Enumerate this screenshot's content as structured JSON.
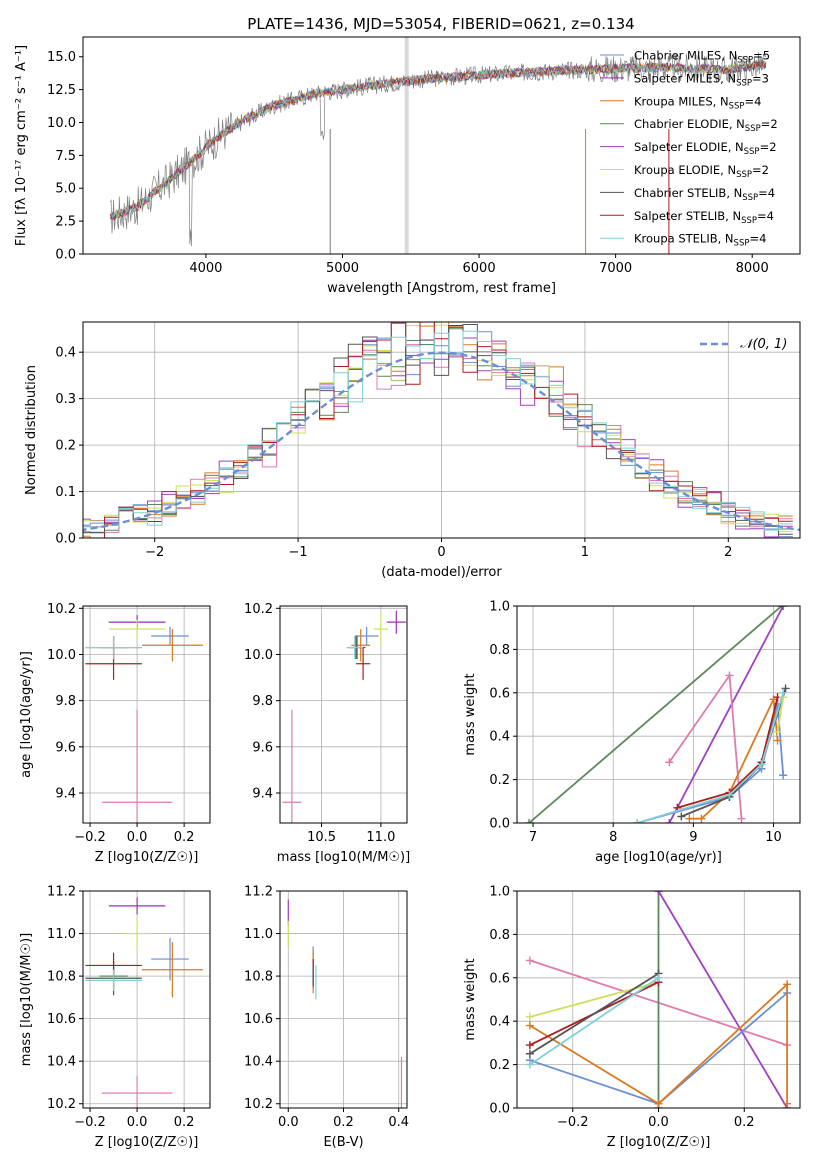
{
  "figure_title": "PLATE=1436, MJD=53054, FIBERID=0621, z=0.134",
  "colors": {
    "Chabrier MILES": "#6a8fd6",
    "Salpeter MILES": "#9b30b0",
    "Kroupa MILES": "#d97a20",
    "Chabrier ELODIE": "#5a8a5a",
    "Salpeter ELODIE": "#a040c0",
    "Kroupa ELODIE": "#cbe15a",
    "Chabrier STELIB": "#555555",
    "Salpeter STELIB": "#b01c1c",
    "Kroupa STELIB": "#7fd0d8",
    "pink": "#e07ab0",
    "gaussian": "#6a8fd6"
  },
  "chart_data": [
    {
      "id": "spectrum",
      "type": "line",
      "title": "PLATE=1436, MJD=53054, FIBERID=0621, z=0.134",
      "xlabel": "wavelength [Angstrom, rest frame]",
      "ylabel": "Flux [fλ 10⁻¹⁷ erg cm⁻² s⁻¹ A⁻¹]",
      "xlim": [
        3100,
        8350
      ],
      "ylim": [
        0,
        16.5
      ],
      "xticks": [
        "4000",
        "5000",
        "6000",
        "7000",
        "8000"
      ],
      "yticks": [
        "0.0",
        "2.5",
        "5.0",
        "7.5",
        "10.0",
        "12.5",
        "15.0"
      ],
      "continuum": {
        "x": [
          3300,
          3500,
          3600,
          3800,
          3950,
          4100,
          4300,
          4500,
          4800,
          5200,
          5600,
          6000,
          6500,
          7000,
          7400,
          7800,
          8100
        ],
        "y": [
          2.8,
          3.6,
          4.5,
          6.2,
          7.6,
          9.0,
          10.3,
          11.3,
          12.2,
          12.8,
          13.3,
          13.6,
          13.9,
          14.1,
          14.2,
          14.0,
          14.4
        ]
      },
      "legend": [
        {
          "label": "Chabrier MILES, N_SSP=5",
          "base": "Chabrier MILES, N",
          "sub": "SSP",
          "tail": "=5"
        },
        {
          "label": "Salpeter MILES, N_SSP=3",
          "base": "Salpeter MILES, N",
          "sub": "SSP",
          "tail": "=3"
        },
        {
          "label": "Kroupa MILES, N_SSP=4",
          "base": "Kroupa MILES, N",
          "sub": "SSP",
          "tail": "=4"
        },
        {
          "label": "Chabrier ELODIE, N_SSP=2",
          "base": "Chabrier ELODIE, N",
          "sub": "SSP",
          "tail": "=2"
        },
        {
          "label": "Salpeter ELODIE, N_SSP=2",
          "base": "Salpeter ELODIE, N",
          "sub": "SSP",
          "tail": "=2"
        },
        {
          "label": "Kroupa ELODIE, N_SSP=2",
          "base": "Kroupa ELODIE, N",
          "sub": "SSP",
          "tail": "=2"
        },
        {
          "label": "Chabrier STELIB, N_SSP=4",
          "base": "Chabrier STELIB, N",
          "sub": "SSP",
          "tail": "=4"
        },
        {
          "label": "Salpeter STELIB, N_SSP=4",
          "base": "Salpeter STELIB, N",
          "sub": "SSP",
          "tail": "=4"
        },
        {
          "label": "Kroupa STELIB, N_SSP=4",
          "base": "Kroupa STELIB, N",
          "sub": "SSP",
          "tail": "=4"
        }
      ],
      "legend_position": "right"
    },
    {
      "id": "residuals",
      "type": "step",
      "xlabel": "(data-model)/error",
      "ylabel": "Normed distribution",
      "xlim": [
        -2.5,
        2.5
      ],
      "ylim": [
        0,
        0.465
      ],
      "xticks": [
        "−2",
        "−1",
        "0",
        "1",
        "2"
      ],
      "yticks": [
        "0.0",
        "0.1",
        "0.2",
        "0.3",
        "0.4"
      ],
      "grid": true,
      "legend": "N(0,1)",
      "legend_position": "top-right"
    },
    {
      "id": "age-vs-Z",
      "type": "scatter",
      "xlabel": "Z [log10(Z/Z☉)]",
      "ylabel": "age  [log10(age/yr)]",
      "xlim": [
        -0.23,
        0.31
      ],
      "ylim": [
        9.27,
        10.21
      ],
      "xticks": [
        "−0.2",
        "0.0",
        "0.2"
      ],
      "yticks": [
        "9.4",
        "9.6",
        "9.8",
        "10.0",
        "10.2"
      ],
      "grid": true,
      "points": [
        {
          "c": "Chabrier MILES",
          "x": 0.14,
          "xe": 0.08,
          "y": 10.08,
          "ye": 0.04
        },
        {
          "c": "Salpeter MILES",
          "x": 0.0,
          "xe": 0.12,
          "y": 10.14,
          "ye": 0.03
        },
        {
          "c": "Kroupa MILES",
          "x": 0.15,
          "xe": 0.13,
          "y": 10.04,
          "ye": 0.07
        },
        {
          "c": "Chabrier ELODIE",
          "x": -0.1,
          "xe": 0.06,
          "y": 10.03,
          "ye": 0.05
        },
        {
          "c": "Salpeter ELODIE",
          "x": 0.0,
          "xe": 0.12,
          "y": 10.14,
          "ye": 0.03
        },
        {
          "c": "Kroupa ELODIE",
          "x": 0.0,
          "xe": 0.12,
          "y": 10.11,
          "ye": 0.04
        },
        {
          "c": "Chabrier STELIB",
          "x": -0.1,
          "xe": 0.12,
          "y": 10.03,
          "ye": 0.05
        },
        {
          "c": "Salpeter STELIB",
          "x": -0.1,
          "xe": 0.12,
          "y": 9.96,
          "ye": 0.07
        },
        {
          "c": "Kroupa STELIB",
          "x": -0.1,
          "xe": 0.12,
          "y": 10.03,
          "ye": 0.05
        },
        {
          "c": "pink",
          "x": 0.0,
          "xe": 0.15,
          "y": 9.36,
          "ye": 0.4
        }
      ]
    },
    {
      "id": "age-vs-mass",
      "type": "scatter",
      "xlabel": "mass [log10(M/M☉)]",
      "xlim": [
        10.15,
        11.22
      ],
      "ylim": [
        9.27,
        10.21
      ],
      "xticks": [
        "10.5",
        "11.0"
      ],
      "yticks": [
        "9.4",
        "9.6",
        "9.8",
        "10.0",
        "10.2"
      ],
      "grid": true,
      "points": [
        {
          "c": "Chabrier MILES",
          "x": 10.88,
          "xe": 0.1,
          "y": 10.08,
          "ye": 0.04
        },
        {
          "c": "Salpeter MILES",
          "x": 11.13,
          "xe": 0.08,
          "y": 10.14,
          "ye": 0.05
        },
        {
          "c": "Kroupa MILES",
          "x": 10.83,
          "xe": 0.08,
          "y": 10.04,
          "ye": 0.07
        },
        {
          "c": "Chabrier ELODIE",
          "x": 10.8,
          "xe": 0.06,
          "y": 10.03,
          "ye": 0.05
        },
        {
          "c": "Kroupa ELODIE",
          "x": 11.0,
          "xe": 0.06,
          "y": 10.11,
          "ye": 0.07
        },
        {
          "c": "Chabrier STELIB",
          "x": 10.79,
          "xe": 0.08,
          "y": 10.03,
          "ye": 0.05
        },
        {
          "c": "Salpeter STELIB",
          "x": 10.85,
          "xe": 0.06,
          "y": 9.96,
          "ye": 0.07
        },
        {
          "c": "Kroupa STELIB",
          "x": 10.78,
          "xe": 0.07,
          "y": 10.03,
          "ye": 0.05
        },
        {
          "c": "pink",
          "x": 10.25,
          "xe": 0.08,
          "y": 9.36,
          "ye": 0.4
        }
      ]
    },
    {
      "id": "weight-vs-age",
      "type": "line",
      "xlabel": "age  [log10(age/yr)]",
      "ylabel": "mass weight",
      "xlim": [
        6.8,
        10.33
      ],
      "ylim": [
        0,
        1.0
      ],
      "xticks": [
        "7",
        "8",
        "9",
        "10"
      ],
      "yticks": [
        "0.0",
        "0.2",
        "0.4",
        "0.6",
        "0.8",
        "1.0"
      ],
      "grid": true,
      "series": [
        {
          "c": "Chabrier ELODIE",
          "x": [
            6.95,
            10.1
          ],
          "y": [
            0.0,
            1.0
          ]
        },
        {
          "c": "Salpeter ELODIE",
          "x": [
            8.7,
            10.12
          ],
          "y": [
            0.0,
            1.0
          ]
        },
        {
          "c": "pink",
          "x": [
            8.7,
            9.45,
            9.6
          ],
          "y": [
            0.28,
            0.68,
            0.02
          ]
        },
        {
          "c": "Chabrier MILES",
          "x": [
            8.3,
            9.45,
            9.85,
            10.05,
            10.12
          ],
          "y": [
            0.0,
            0.12,
            0.25,
            0.55,
            0.22
          ]
        },
        {
          "c": "Kroupa MILES",
          "x": [
            8.95,
            9.1,
            9.45,
            10.0,
            10.05
          ],
          "y": [
            0.02,
            0.02,
            0.14,
            0.57,
            0.38
          ]
        },
        {
          "c": "Salpeter STELIB",
          "x": [
            8.8,
            9.45,
            9.85,
            10.05
          ],
          "y": [
            0.07,
            0.14,
            0.28,
            0.58
          ]
        },
        {
          "c": "Chabrier STELIB",
          "x": [
            8.85,
            9.45,
            9.85,
            10.15
          ],
          "y": [
            0.03,
            0.12,
            0.27,
            0.62
          ]
        },
        {
          "c": "Kroupa ELODIE",
          "x": [
            10.05,
            10.12
          ],
          "y": [
            0.42,
            0.58
          ]
        },
        {
          "c": "Kroupa STELIB",
          "x": [
            8.3,
            9.45,
            9.85,
            10.12
          ],
          "y": [
            0.0,
            0.13,
            0.27,
            0.6
          ]
        }
      ]
    },
    {
      "id": "mass-vs-Z",
      "type": "scatter",
      "xlabel": "Z [log10(Z/Z☉)]",
      "ylabel": "mass [log10(M/M☉)]",
      "xlim": [
        -0.23,
        0.31
      ],
      "ylim": [
        10.18,
        11.2
      ],
      "xticks": [
        "−0.2",
        "0.0",
        "0.2"
      ],
      "yticks": [
        "10.2",
        "10.4",
        "10.6",
        "10.8",
        "11.0",
        "11.2"
      ],
      "grid": true,
      "points": [
        {
          "c": "Chabrier MILES",
          "x": 0.14,
          "xe": 0.08,
          "y": 10.88,
          "ye": 0.1
        },
        {
          "c": "Salpeter MILES",
          "x": 0.0,
          "xe": 0.12,
          "y": 11.13,
          "ye": 0.04
        },
        {
          "c": "Kroupa MILES",
          "x": 0.15,
          "xe": 0.13,
          "y": 10.83,
          "ye": 0.13
        },
        {
          "c": "Chabrier ELODIE",
          "x": -0.1,
          "xe": 0.06,
          "y": 10.8,
          "ye": 0.07
        },
        {
          "c": "Kroupa ELODIE",
          "x": 0.0,
          "xe": 0.06,
          "y": 11.0,
          "ye": 0.07
        },
        {
          "c": "Chabrier STELIB",
          "x": -0.1,
          "xe": 0.12,
          "y": 10.79,
          "ye": 0.08
        },
        {
          "c": "Salpeter STELIB",
          "x": -0.1,
          "xe": 0.12,
          "y": 10.85,
          "ye": 0.06
        },
        {
          "c": "Kroupa STELIB",
          "x": -0.1,
          "xe": 0.12,
          "y": 10.78,
          "ye": 0.05
        },
        {
          "c": "pink",
          "x": 0.0,
          "xe": 0.15,
          "y": 10.25,
          "ye": 0.08
        }
      ]
    },
    {
      "id": "mass-vs-ebv",
      "type": "scatter",
      "xlabel": "E(B-V)",
      "xlim": [
        -0.03,
        0.43
      ],
      "ylim": [
        10.18,
        11.2
      ],
      "xticks": [
        "0.0",
        "0.2",
        "0.4"
      ],
      "yticks": [
        "10.2",
        "10.4",
        "10.6",
        "10.8",
        "11.0",
        "11.2"
      ],
      "grid": true,
      "points": [
        {
          "c": "Salpeter ELODIE",
          "x": 0.0,
          "xe": 0.0,
          "y": 11.1,
          "ye": 0.06
        },
        {
          "c": "Kroupa ELODIE",
          "x": 0.0,
          "xe": 0.0,
          "y": 11.0,
          "ye": 0.06
        },
        {
          "c": "Chabrier MILES",
          "x": 0.09,
          "xe": 0.0,
          "y": 10.84,
          "ye": 0.1
        },
        {
          "c": "Kroupa MILES",
          "x": 0.09,
          "xe": 0.0,
          "y": 10.82,
          "ye": 0.1
        },
        {
          "c": "Salpeter STELIB",
          "x": 0.09,
          "xe": 0.0,
          "y": 10.82,
          "ye": 0.06
        },
        {
          "c": "Chabrier STELIB",
          "x": 0.09,
          "xe": 0.0,
          "y": 10.8,
          "ye": 0.05
        },
        {
          "c": "Kroupa STELIB",
          "x": 0.1,
          "xe": 0.0,
          "y": 10.77,
          "ye": 0.08
        },
        {
          "c": "pink",
          "x": 0.41,
          "xe": 0.0,
          "y": 10.3,
          "ye": 0.12
        }
      ]
    },
    {
      "id": "weight-vs-Z",
      "type": "line",
      "xlabel": "Z [log10(Z/Z☉)]",
      "ylabel": "mass weight",
      "xlim": [
        -0.33,
        0.33
      ],
      "ylim": [
        0,
        1.0
      ],
      "xticks": [
        "−0.2",
        "0.0",
        "0.2"
      ],
      "yticks": [
        "0.0",
        "0.2",
        "0.4",
        "0.6",
        "0.8",
        "1.0"
      ],
      "grid": true,
      "series": [
        {
          "c": "pink",
          "x": [
            -0.3,
            0.3
          ],
          "y": [
            0.68,
            0.29
          ]
        },
        {
          "c": "Kroupa ELODIE",
          "x": [
            -0.3,
            0.0
          ],
          "y": [
            0.42,
            0.58
          ]
        },
        {
          "c": "Chabrier ELODIE",
          "x": [
            0.0,
            0.0
          ],
          "y": [
            0.0,
            1.0
          ]
        },
        {
          "c": "Salpeter ELODIE",
          "x": [
            0.0,
            0.3
          ],
          "y": [
            1.0,
            0.0
          ]
        },
        {
          "c": "Chabrier MILES",
          "x": [
            -0.3,
            0.0,
            0.3
          ],
          "y": [
            0.22,
            0.02,
            0.53
          ]
        },
        {
          "c": "Kroupa MILES",
          "x": [
            -0.3,
            0.0,
            0.3,
            0.3
          ],
          "y": [
            0.38,
            0.02,
            0.57,
            0.02
          ]
        },
        {
          "c": "Salpeter STELIB",
          "x": [
            -0.3,
            0.0
          ],
          "y": [
            0.29,
            0.58
          ]
        },
        {
          "c": "Chabrier STELIB",
          "x": [
            -0.3,
            0.0
          ],
          "y": [
            0.25,
            0.62
          ]
        },
        {
          "c": "Kroupa STELIB",
          "x": [
            -0.3,
            0.0
          ],
          "y": [
            0.2,
            0.6
          ]
        }
      ]
    }
  ]
}
